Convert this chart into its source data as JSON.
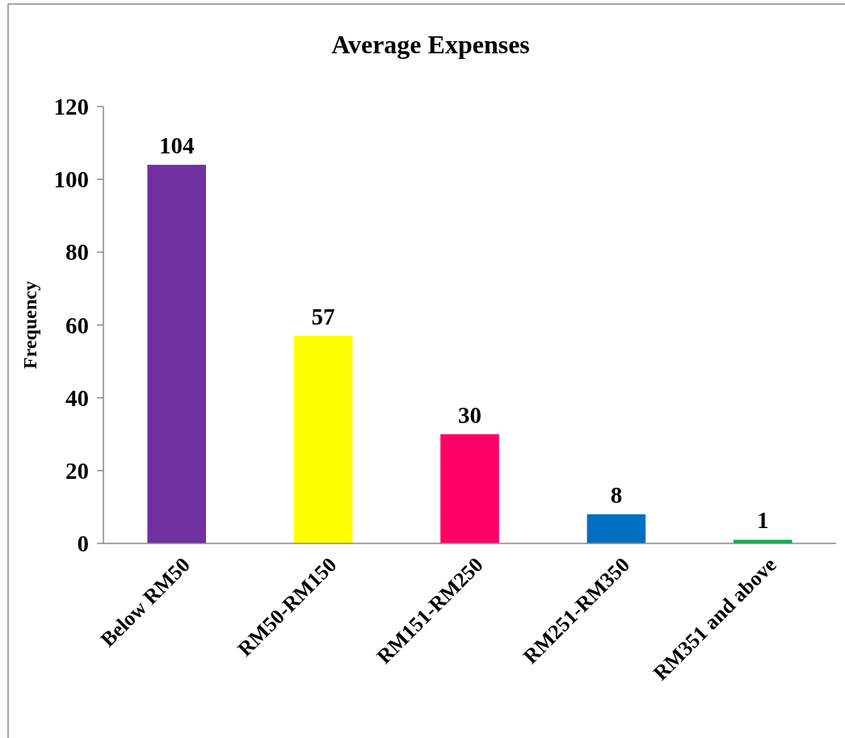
{
  "chart_data": {
    "type": "bar",
    "title": "Average Expenses",
    "ylabel": "Frequency",
    "categories": [
      "Below RM50",
      "RM50-RM150",
      "RM151-RM250",
      "RM251-RM350",
      "RM351 and above"
    ],
    "values": [
      104,
      57,
      30,
      8,
      1
    ],
    "colors": [
      "#7030a0",
      "#ffff00",
      "#ff0066",
      "#0070c0",
      "#00b050"
    ],
    "ylim": [
      0,
      120
    ],
    "yticks": [
      0,
      20,
      40,
      60,
      80,
      100,
      120
    ],
    "grid": false,
    "data_labels": true
  }
}
